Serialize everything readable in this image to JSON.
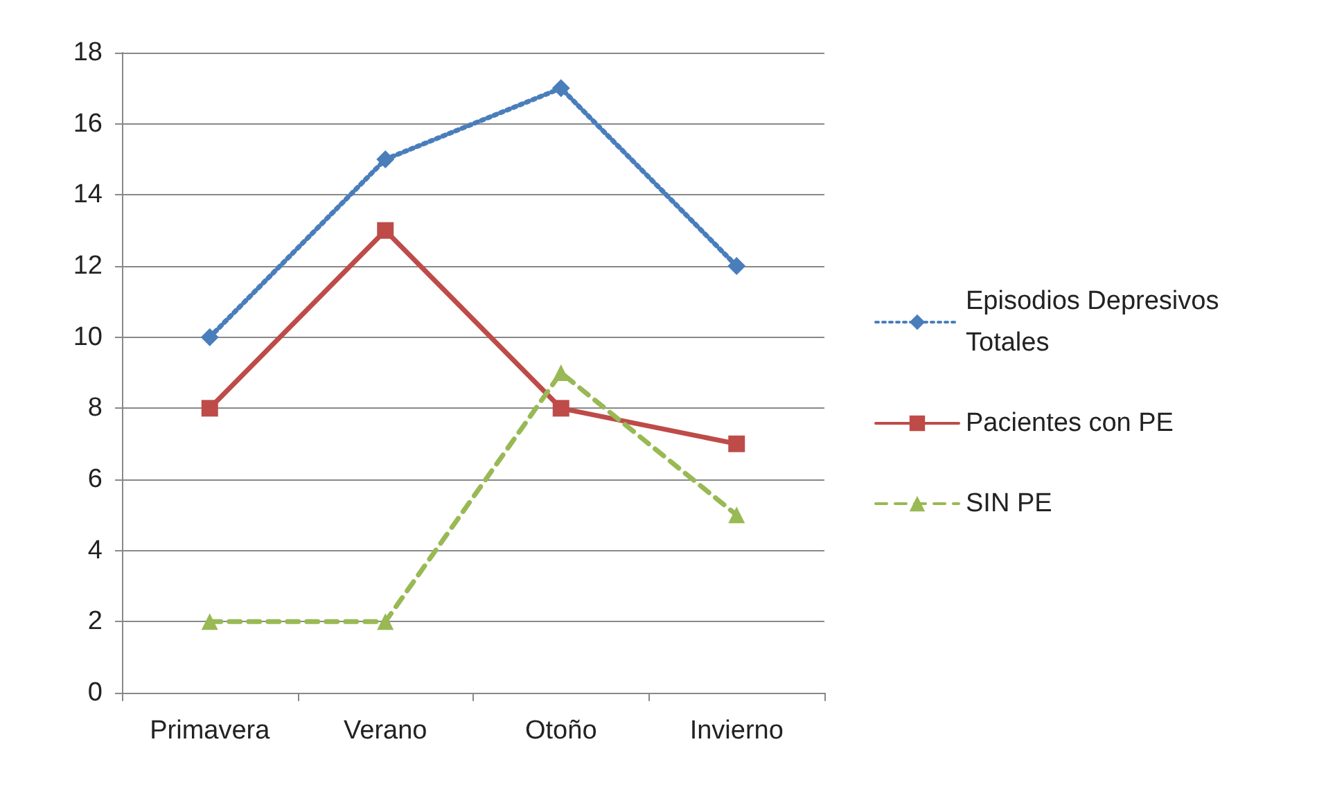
{
  "chart_data": {
    "type": "line",
    "categories": [
      "Primavera",
      "Verano",
      "Otoño",
      "Invierno"
    ],
    "series": [
      {
        "name": "Episodios Depresivos Totales",
        "color": "#4a7ebb",
        "values": [
          10,
          15,
          17,
          12
        ],
        "marker": "diamond",
        "line_style": "dotted"
      },
      {
        "name": "Pacientes con PE",
        "color": "#be4b48",
        "values": [
          8,
          13,
          8,
          7
        ],
        "marker": "square",
        "line_style": "solid"
      },
      {
        "name": "SIN PE",
        "color": "#98b954",
        "values": [
          2,
          2,
          9,
          5
        ],
        "marker": "triangle",
        "line_style": "dashed"
      }
    ],
    "ylim": [
      0,
      18
    ],
    "yticks": [
      0,
      2,
      4,
      6,
      8,
      10,
      12,
      14,
      16,
      18
    ],
    "grid": "y",
    "legend": "right"
  }
}
